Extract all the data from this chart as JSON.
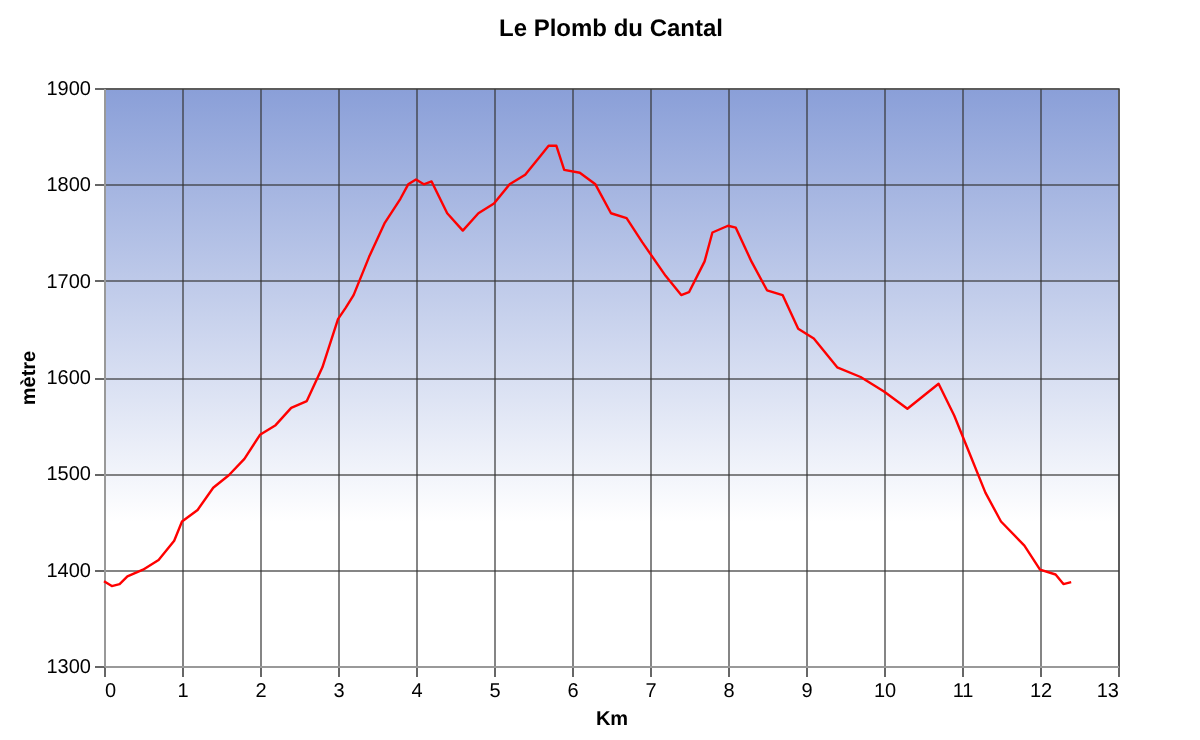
{
  "chart_data": {
    "type": "line",
    "title": "Le Plomb du Cantal",
    "xlabel": "Km",
    "ylabel": "mètre",
    "x": [
      0,
      0.1,
      0.2,
      0.3,
      0.5,
      0.7,
      0.9,
      1.0,
      1.2,
      1.4,
      1.6,
      1.8,
      2.0,
      2.2,
      2.4,
      2.6,
      2.8,
      3.0,
      3.1,
      3.2,
      3.4,
      3.6,
      3.8,
      3.9,
      4.0,
      4.1,
      4.2,
      4.4,
      4.6,
      4.8,
      5.0,
      5.2,
      5.4,
      5.6,
      5.7,
      5.8,
      5.9,
      6.1,
      6.3,
      6.5,
      6.7,
      6.9,
      7.2,
      7.4,
      7.5,
      7.7,
      7.8,
      8.0,
      8.1,
      8.3,
      8.5,
      8.7,
      8.9,
      9.1,
      9.4,
      9.7,
      10.0,
      10.3,
      10.5,
      10.7,
      10.9,
      11.1,
      11.3,
      11.5,
      11.8,
      12.0,
      12.2,
      12.3,
      12.4
    ],
    "series": [
      {
        "color": "#ff0000",
        "values": [
          1388,
          1383,
          1385,
          1393,
          1400,
          1410,
          1430,
          1450,
          1462,
          1485,
          1498,
          1515,
          1540,
          1550,
          1568,
          1575,
          1610,
          1660,
          1672,
          1685,
          1725,
          1760,
          1785,
          1800,
          1805,
          1800,
          1803,
          1770,
          1752,
          1770,
          1780,
          1800,
          1810,
          1830,
          1840,
          1840,
          1815,
          1812,
          1800,
          1770,
          1765,
          1740,
          1705,
          1685,
          1688,
          1720,
          1750,
          1757,
          1755,
          1720,
          1690,
          1685,
          1650,
          1640,
          1610,
          1600,
          1585,
          1567,
          1580,
          1593,
          1560,
          1520,
          1480,
          1450,
          1425,
          1400,
          1395,
          1385,
          1387
        ]
      }
    ],
    "xlim": [
      0,
      13
    ],
    "xticks": [
      0,
      1,
      2,
      3,
      4,
      5,
      6,
      7,
      8,
      9,
      10,
      11,
      12,
      13
    ],
    "ylim": [
      1300,
      1900
    ],
    "yticks": [
      1300,
      1400,
      1500,
      1600,
      1700,
      1800,
      1900
    ],
    "grid": true,
    "marker": "none",
    "line_style": "solid"
  }
}
